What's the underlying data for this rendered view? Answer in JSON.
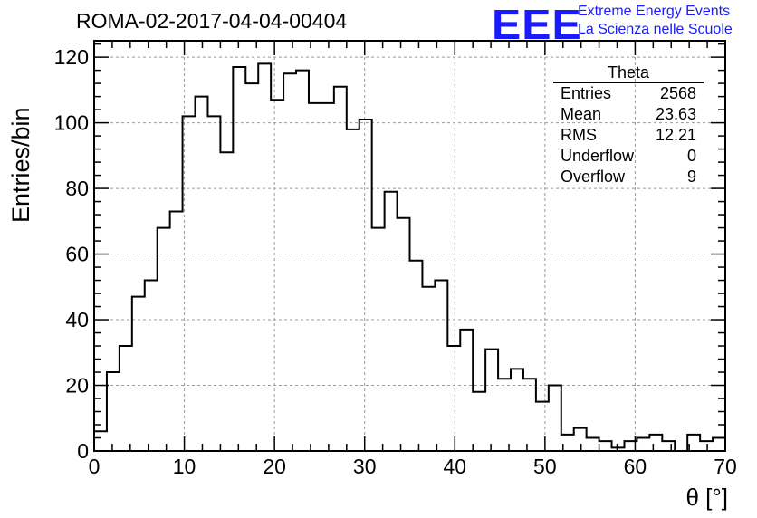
{
  "header": {
    "run_title": "ROMA-02-2017-04-04-00404",
    "logo_text": "EEE",
    "brand_line1": "Extreme Energy Events",
    "brand_line2": "La Scienza nelle Scuole",
    "brand_color": "#1a1aff"
  },
  "stats_box": {
    "name": "Theta",
    "rows": [
      {
        "label": "Entries",
        "value": "2568"
      },
      {
        "label": "Mean",
        "value": "23.63"
      },
      {
        "label": "RMS",
        "value": "12.21"
      },
      {
        "label": "Underflow",
        "value": "0"
      },
      {
        "label": "Overflow",
        "value": "9"
      }
    ]
  },
  "chart_data": {
    "type": "histogram",
    "xlabel": "θ [°]",
    "ylabel": "Entries/bin",
    "xlim": [
      0,
      70
    ],
    "ylim": [
      0,
      125
    ],
    "bin_width": 1.4,
    "x_ticks": [
      0,
      10,
      20,
      30,
      40,
      50,
      60,
      70
    ],
    "y_ticks": [
      0,
      20,
      40,
      60,
      80,
      100,
      120
    ],
    "grid": true,
    "values": [
      6,
      24,
      32,
      47,
      52,
      68,
      73,
      102,
      108,
      102,
      91,
      117,
      112,
      118,
      107,
      115,
      116,
      106,
      106,
      111,
      98,
      101,
      68,
      79,
      71,
      58,
      50,
      52,
      32,
      37,
      18,
      31,
      22,
      25,
      22,
      15,
      20,
      5,
      7,
      4,
      3,
      1,
      3,
      4,
      5,
      3,
      0,
      5,
      3,
      4
    ]
  }
}
